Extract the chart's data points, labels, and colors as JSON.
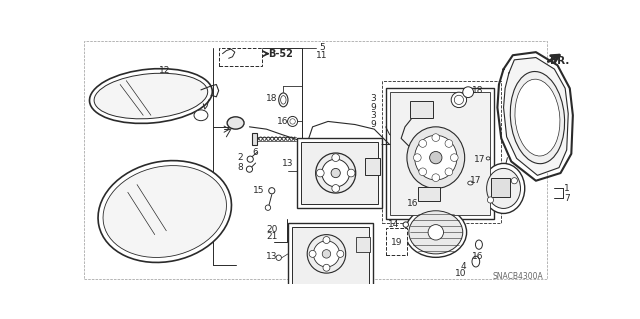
{
  "bg_color": "#ffffff",
  "line_color": "#2a2a2a",
  "fig_width": 6.4,
  "fig_height": 3.19,
  "dpi": 100,
  "diagram_code": "SNACB4300A",
  "ref_label": "FR."
}
